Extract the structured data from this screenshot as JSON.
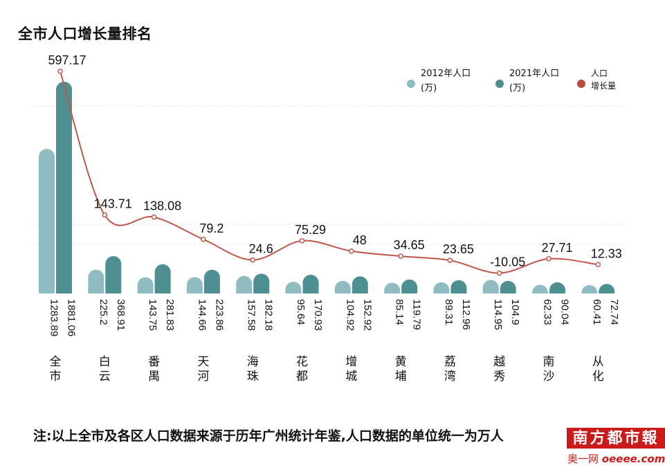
{
  "title": "全市人口增长量排名",
  "note": "注:以上全市及各区人口数据来源于历年广州统计年鉴,人口数据的单位统一为万人",
  "logo": {
    "name": "南方都市報",
    "sub_prefix": "奥一网",
    "sub_site": "oeeee.com"
  },
  "legend": [
    {
      "line1": "2012年人口",
      "line2": "(万)",
      "color": "#8fbcc0"
    },
    {
      "line1": "2021年人口",
      "line2": "(万)",
      "color": "#4e8f91"
    },
    {
      "line1": "人口",
      "line2": "增长量",
      "color": "#b84c3c"
    }
  ],
  "colors": {
    "bar2012": "#8fbcc0",
    "bar2021": "#4e8f91",
    "line": "#c0564a",
    "grid": "#e4e4e4"
  },
  "chart_data": {
    "type": "bar",
    "title": "全市人口增长量排名",
    "categories": [
      "全市",
      "白云",
      "番禺",
      "天河",
      "海珠",
      "花都",
      "增城",
      "黄埔",
      "荔湾",
      "越秀",
      "南沙",
      "从化"
    ],
    "series": [
      {
        "name": "2012年人口(万)",
        "type": "bar",
        "values": [
          1283.89,
          225.2,
          143.75,
          144.66,
          157.58,
          95.64,
          104.92,
          85.14,
          89.31,
          114.95,
          62.33,
          60.41
        ]
      },
      {
        "name": "2021年人口(万)",
        "type": "bar",
        "values": [
          1881.06,
          368.91,
          281.83,
          223.86,
          182.18,
          170.93,
          152.92,
          119.79,
          112.96,
          104.9,
          90.04,
          72.74
        ]
      },
      {
        "name": "人口增长量",
        "type": "line",
        "values": [
          597.17,
          143.71,
          138.08,
          79.2,
          24.6,
          75.29,
          48,
          34.65,
          23.65,
          -10.05,
          27.71,
          12.33
        ]
      }
    ],
    "grid": true,
    "legend_position": "top-right"
  }
}
